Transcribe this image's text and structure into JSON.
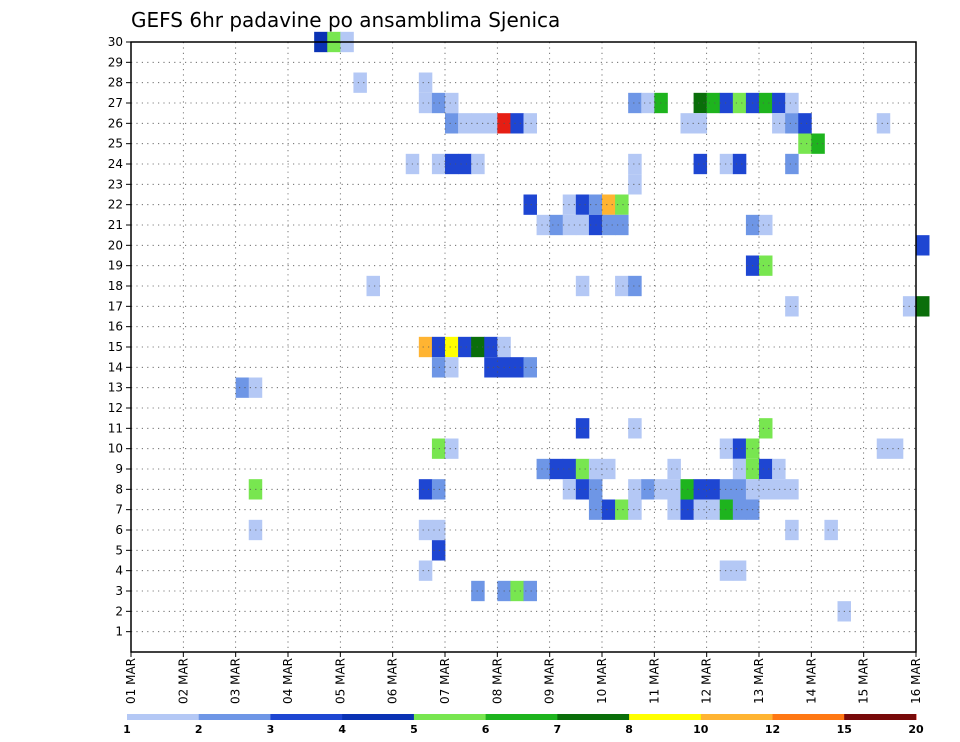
{
  "chart_data": {
    "type": "heatmap",
    "title": "GEFS 6hr padavine po ansamblima Sjenica",
    "xlabel": "",
    "ylabel": "",
    "x_tick_labels": [
      "01 MAR",
      "02 MAR",
      "03 MAR",
      "04 MAR",
      "05 MAR",
      "06 MAR",
      "07 MAR",
      "08 MAR",
      "09 MAR",
      "10 MAR",
      "11 MAR",
      "12 MAR",
      "13 MAR",
      "14 MAR",
      "15 MAR",
      "16 MAR"
    ],
    "y_tick_labels": [
      "1",
      "2",
      "3",
      "4",
      "5",
      "6",
      "7",
      "8",
      "9",
      "10",
      "11",
      "12",
      "13",
      "14",
      "15",
      "16",
      "17",
      "18",
      "19",
      "20",
      "21",
      "22",
      "23",
      "24",
      "25",
      "26",
      "27",
      "28",
      "29",
      "30"
    ],
    "x_range_days": [
      0,
      15
    ],
    "y_range": [
      0,
      30
    ],
    "grid": true,
    "cell_width_days": 0.25,
    "legend": {
      "position": "bottom",
      "labels": [
        "1",
        "2",
        "3",
        "4",
        "5",
        "6",
        "7",
        "8",
        "10",
        "12",
        "15",
        "20"
      ],
      "colors": [
        "#b4c8f5",
        "#6e96e6",
        "#1e46d2",
        "#0a32b4",
        "#78e650",
        "#1eb41e",
        "#0a6e0a",
        "#ffff00",
        "#ffb432",
        "#ff7814",
        "#e61e14",
        "#780a0a"
      ]
    },
    "cells": [
      {
        "day": 3.5,
        "member": 30,
        "value": 4
      },
      {
        "day": 3.75,
        "member": 30,
        "value": 5
      },
      {
        "day": 4.0,
        "member": 30,
        "value": 1
      },
      {
        "day": 4.25,
        "member": 28,
        "value": 1
      },
      {
        "day": 5.5,
        "member": 28,
        "value": 1
      },
      {
        "day": 5.5,
        "member": 27,
        "value": 1
      },
      {
        "day": 5.75,
        "member": 27,
        "value": 2
      },
      {
        "day": 6.0,
        "member": 27,
        "value": 1
      },
      {
        "day": 9.5,
        "member": 27,
        "value": 2
      },
      {
        "day": 9.75,
        "member": 27,
        "value": 1
      },
      {
        "day": 10.0,
        "member": 27,
        "value": 6
      },
      {
        "day": 10.75,
        "member": 27,
        "value": 7
      },
      {
        "day": 11.0,
        "member": 27,
        "value": 6
      },
      {
        "day": 11.25,
        "member": 27,
        "value": 3
      },
      {
        "day": 11.5,
        "member": 27,
        "value": 5
      },
      {
        "day": 11.75,
        "member": 27,
        "value": 3
      },
      {
        "day": 12.0,
        "member": 27,
        "value": 6
      },
      {
        "day": 12.25,
        "member": 27,
        "value": 3
      },
      {
        "day": 12.5,
        "member": 27,
        "value": 1
      },
      {
        "day": 6.0,
        "member": 26,
        "value": 2
      },
      {
        "day": 6.25,
        "member": 26,
        "value": 1
      },
      {
        "day": 6.5,
        "member": 26,
        "value": 1
      },
      {
        "day": 6.75,
        "member": 26,
        "value": 1
      },
      {
        "day": 7.0,
        "member": 26,
        "value": 15
      },
      {
        "day": 7.25,
        "member": 26,
        "value": 3
      },
      {
        "day": 7.5,
        "member": 26,
        "value": 1
      },
      {
        "day": 10.5,
        "member": 26,
        "value": 1
      },
      {
        "day": 10.75,
        "member": 26,
        "value": 1
      },
      {
        "day": 12.25,
        "member": 26,
        "value": 1
      },
      {
        "day": 12.5,
        "member": 26,
        "value": 2
      },
      {
        "day": 12.75,
        "member": 26,
        "value": 3
      },
      {
        "day": 14.25,
        "member": 26,
        "value": 1
      },
      {
        "day": 12.75,
        "member": 25,
        "value": 5
      },
      {
        "day": 13.0,
        "member": 25,
        "value": 6
      },
      {
        "day": 5.25,
        "member": 24,
        "value": 1
      },
      {
        "day": 5.75,
        "member": 24,
        "value": 1
      },
      {
        "day": 6.0,
        "member": 24,
        "value": 3
      },
      {
        "day": 6.25,
        "member": 24,
        "value": 3
      },
      {
        "day": 6.5,
        "member": 24,
        "value": 1
      },
      {
        "day": 9.5,
        "member": 24,
        "value": 1
      },
      {
        "day": 10.75,
        "member": 24,
        "value": 3
      },
      {
        "day": 11.25,
        "member": 24,
        "value": 1
      },
      {
        "day": 11.5,
        "member": 24,
        "value": 3
      },
      {
        "day": 12.5,
        "member": 24,
        "value": 2
      },
      {
        "day": 9.5,
        "member": 23,
        "value": 1
      },
      {
        "day": 7.5,
        "member": 22,
        "value": 3
      },
      {
        "day": 8.25,
        "member": 22,
        "value": 1
      },
      {
        "day": 8.5,
        "member": 22,
        "value": 3
      },
      {
        "day": 8.75,
        "member": 22,
        "value": 2
      },
      {
        "day": 9.0,
        "member": 22,
        "value": 10
      },
      {
        "day": 9.25,
        "member": 22,
        "value": 5
      },
      {
        "day": 7.75,
        "member": 21,
        "value": 1
      },
      {
        "day": 8.0,
        "member": 21,
        "value": 2
      },
      {
        "day": 8.25,
        "member": 21,
        "value": 1
      },
      {
        "day": 8.5,
        "member": 21,
        "value": 1
      },
      {
        "day": 8.75,
        "member": 21,
        "value": 3
      },
      {
        "day": 9.0,
        "member": 21,
        "value": 2
      },
      {
        "day": 9.25,
        "member": 21,
        "value": 2
      },
      {
        "day": 11.75,
        "member": 21,
        "value": 2
      },
      {
        "day": 12.0,
        "member": 21,
        "value": 1
      },
      {
        "day": 15.0,
        "member": 20,
        "value": 3
      },
      {
        "day": 11.75,
        "member": 19,
        "value": 3
      },
      {
        "day": 12.0,
        "member": 19,
        "value": 5
      },
      {
        "day": 4.5,
        "member": 18,
        "value": 1
      },
      {
        "day": 8.5,
        "member": 18,
        "value": 1
      },
      {
        "day": 9.25,
        "member": 18,
        "value": 1
      },
      {
        "day": 9.5,
        "member": 18,
        "value": 2
      },
      {
        "day": 12.5,
        "member": 17,
        "value": 1
      },
      {
        "day": 14.75,
        "member": 17,
        "value": 1
      },
      {
        "day": 15.0,
        "member": 17,
        "value": 7
      },
      {
        "day": 5.5,
        "member": 15,
        "value": 10
      },
      {
        "day": 5.75,
        "member": 15,
        "value": 3
      },
      {
        "day": 6.0,
        "member": 15,
        "value": 8
      },
      {
        "day": 6.25,
        "member": 15,
        "value": 3
      },
      {
        "day": 6.5,
        "member": 15,
        "value": 7
      },
      {
        "day": 6.75,
        "member": 15,
        "value": 3
      },
      {
        "day": 7.0,
        "member": 15,
        "value": 1
      },
      {
        "day": 5.75,
        "member": 14,
        "value": 2
      },
      {
        "day": 6.0,
        "member": 14,
        "value": 1
      },
      {
        "day": 6.75,
        "member": 14,
        "value": 3
      },
      {
        "day": 7.0,
        "member": 14,
        "value": 3
      },
      {
        "day": 7.25,
        "member": 14,
        "value": 3
      },
      {
        "day": 7.5,
        "member": 14,
        "value": 2
      },
      {
        "day": 2.0,
        "member": 13,
        "value": 2
      },
      {
        "day": 2.25,
        "member": 13,
        "value": 1
      },
      {
        "day": 8.5,
        "member": 11,
        "value": 3
      },
      {
        "day": 9.5,
        "member": 11,
        "value": 1
      },
      {
        "day": 12.0,
        "member": 11,
        "value": 5
      },
      {
        "day": 5.75,
        "member": 10,
        "value": 5
      },
      {
        "day": 6.0,
        "member": 10,
        "value": 1
      },
      {
        "day": 11.25,
        "member": 10,
        "value": 1
      },
      {
        "day": 11.5,
        "member": 10,
        "value": 3
      },
      {
        "day": 11.75,
        "member": 10,
        "value": 5
      },
      {
        "day": 14.25,
        "member": 10,
        "value": 1
      },
      {
        "day": 14.5,
        "member": 10,
        "value": 1
      },
      {
        "day": 7.75,
        "member": 9,
        "value": 2
      },
      {
        "day": 8.0,
        "member": 9,
        "value": 3
      },
      {
        "day": 8.25,
        "member": 9,
        "value": 3
      },
      {
        "day": 8.5,
        "member": 9,
        "value": 5
      },
      {
        "day": 8.75,
        "member": 9,
        "value": 1
      },
      {
        "day": 9.0,
        "member": 9,
        "value": 1
      },
      {
        "day": 10.25,
        "member": 9,
        "value": 1
      },
      {
        "day": 11.5,
        "member": 9,
        "value": 1
      },
      {
        "day": 11.75,
        "member": 9,
        "value": 5
      },
      {
        "day": 12.0,
        "member": 9,
        "value": 3
      },
      {
        "day": 12.25,
        "member": 9,
        "value": 1
      },
      {
        "day": 2.25,
        "member": 8,
        "value": 5
      },
      {
        "day": 5.5,
        "member": 8,
        "value": 3
      },
      {
        "day": 5.75,
        "member": 8,
        "value": 2
      },
      {
        "day": 8.25,
        "member": 8,
        "value": 1
      },
      {
        "day": 8.5,
        "member": 8,
        "value": 3
      },
      {
        "day": 8.75,
        "member": 8,
        "value": 2
      },
      {
        "day": 9.5,
        "member": 8,
        "value": 1
      },
      {
        "day": 9.75,
        "member": 8,
        "value": 2
      },
      {
        "day": 10.0,
        "member": 8,
        "value": 1
      },
      {
        "day": 10.25,
        "member": 8,
        "value": 1
      },
      {
        "day": 10.5,
        "member": 8,
        "value": 6
      },
      {
        "day": 10.75,
        "member": 8,
        "value": 3
      },
      {
        "day": 11.0,
        "member": 8,
        "value": 3
      },
      {
        "day": 11.25,
        "member": 8,
        "value": 2
      },
      {
        "day": 11.5,
        "member": 8,
        "value": 2
      },
      {
        "day": 11.75,
        "member": 8,
        "value": 1
      },
      {
        "day": 12.0,
        "member": 8,
        "value": 1
      },
      {
        "day": 12.25,
        "member": 8,
        "value": 1
      },
      {
        "day": 12.5,
        "member": 8,
        "value": 1
      },
      {
        "day": 8.75,
        "member": 7,
        "value": 2
      },
      {
        "day": 9.0,
        "member": 7,
        "value": 3
      },
      {
        "day": 9.25,
        "member": 7,
        "value": 5
      },
      {
        "day": 9.5,
        "member": 7,
        "value": 1
      },
      {
        "day": 10.25,
        "member": 7,
        "value": 1
      },
      {
        "day": 10.5,
        "member": 7,
        "value": 3
      },
      {
        "day": 10.75,
        "member": 7,
        "value": 1
      },
      {
        "day": 11.0,
        "member": 7,
        "value": 1
      },
      {
        "day": 11.25,
        "member": 7,
        "value": 6
      },
      {
        "day": 11.5,
        "member": 7,
        "value": 2
      },
      {
        "day": 11.75,
        "member": 7,
        "value": 2
      },
      {
        "day": 2.25,
        "member": 6,
        "value": 1
      },
      {
        "day": 5.5,
        "member": 6,
        "value": 1
      },
      {
        "day": 5.75,
        "member": 6,
        "value": 1
      },
      {
        "day": 12.5,
        "member": 6,
        "value": 1
      },
      {
        "day": 13.25,
        "member": 6,
        "value": 1
      },
      {
        "day": 5.75,
        "member": 5,
        "value": 3
      },
      {
        "day": 5.5,
        "member": 4,
        "value": 1
      },
      {
        "day": 11.25,
        "member": 4,
        "value": 1
      },
      {
        "day": 11.5,
        "member": 4,
        "value": 1
      },
      {
        "day": 6.5,
        "member": 3,
        "value": 2
      },
      {
        "day": 7.0,
        "member": 3,
        "value": 2
      },
      {
        "day": 7.25,
        "member": 3,
        "value": 5
      },
      {
        "day": 7.5,
        "member": 3,
        "value": 2
      },
      {
        "day": 13.5,
        "member": 2,
        "value": 1
      }
    ]
  }
}
